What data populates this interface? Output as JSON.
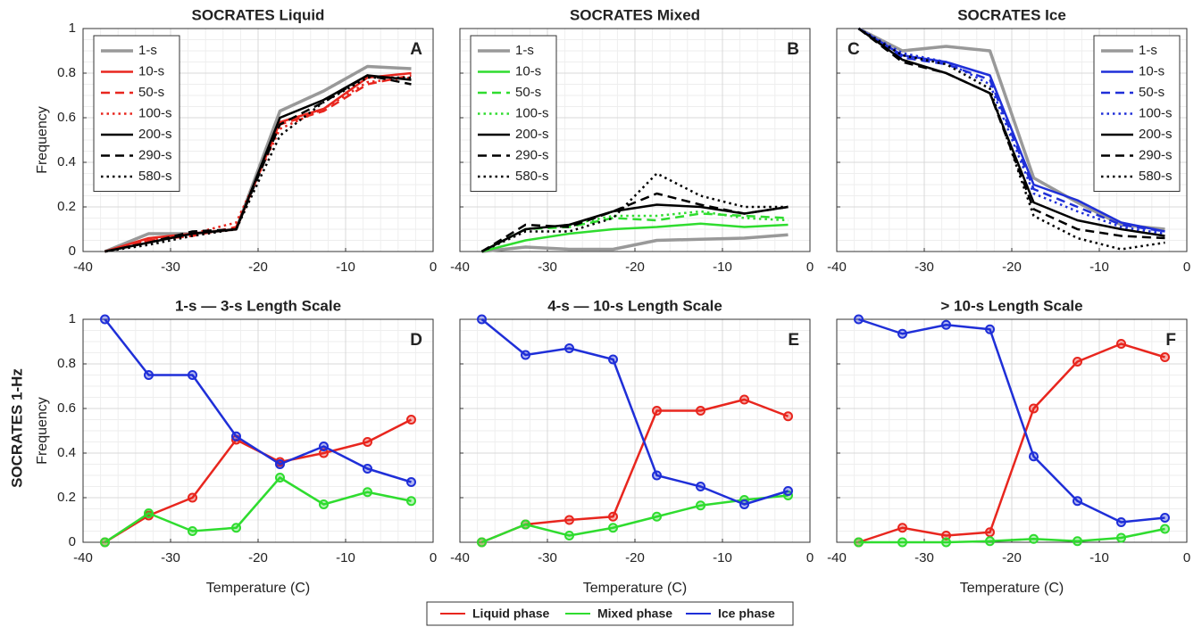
{
  "chart_data": [
    {
      "type": "line",
      "title": "SOCRATES Liquid",
      "panel_label": "A",
      "ylabel": "Frequency",
      "x": [
        -37.5,
        -32.5,
        -27.5,
        -22.5,
        -17.5,
        -12.5,
        -7.5,
        -2.5
      ],
      "xlim": [
        -40,
        0
      ],
      "xticks": [
        -40,
        -30,
        -20,
        -10,
        0
      ],
      "ylim": [
        0,
        1
      ],
      "yticks": [
        0,
        0.2,
        0.4,
        0.6,
        0.8,
        1
      ],
      "ytick_labels": true,
      "grid": true,
      "legend": "upper left",
      "markers": false,
      "series": [
        {
          "name": "1-s",
          "color": "#999999",
          "dash": "solid",
          "values": [
            0,
            0.08,
            0.08,
            0.1,
            0.63,
            0.72,
            0.83,
            0.82
          ]
        },
        {
          "name": "10-s",
          "color": "#e8261e",
          "dash": "solid",
          "values": [
            0,
            0.06,
            0.08,
            0.1,
            0.58,
            0.64,
            0.78,
            0.8
          ]
        },
        {
          "name": "50-s",
          "color": "#e8261e",
          "dash": "dashed",
          "values": [
            0,
            0.05,
            0.07,
            0.11,
            0.57,
            0.63,
            0.75,
            0.79
          ]
        },
        {
          "name": "100-s",
          "color": "#e8261e",
          "dash": "dotted",
          "values": [
            0,
            0.05,
            0.08,
            0.13,
            0.55,
            0.64,
            0.76,
            0.78
          ]
        },
        {
          "name": "200-s",
          "color": "#000000",
          "dash": "solid",
          "values": [
            0,
            0.04,
            0.08,
            0.1,
            0.6,
            0.68,
            0.79,
            0.77
          ]
        },
        {
          "name": "290-s",
          "color": "#000000",
          "dash": "dashed",
          "values": [
            0,
            0.04,
            0.09,
            0.1,
            0.57,
            0.67,
            0.79,
            0.75
          ]
        },
        {
          "name": "580-s",
          "color": "#000000",
          "dash": "dotted",
          "values": [
            0,
            0.03,
            0.07,
            0.1,
            0.52,
            0.67,
            0.78,
            0.78
          ]
        }
      ]
    },
    {
      "type": "line",
      "title": "SOCRATES Mixed",
      "panel_label": "B",
      "x": [
        -37.5,
        -32.5,
        -27.5,
        -22.5,
        -17.5,
        -12.5,
        -7.5,
        -2.5
      ],
      "xlim": [
        -40,
        0
      ],
      "xticks": [
        -40,
        -30,
        -20,
        -10,
        0
      ],
      "ylim": [
        0,
        1
      ],
      "yticks": [
        0,
        0.2,
        0.4,
        0.6,
        0.8,
        1
      ],
      "ytick_labels": false,
      "grid": true,
      "legend": "upper left",
      "markers": false,
      "series": [
        {
          "name": "1-s",
          "color": "#999999",
          "dash": "solid",
          "values": [
            0,
            0.02,
            0.01,
            0.01,
            0.05,
            0.055,
            0.06,
            0.075
          ]
        },
        {
          "name": "10-s",
          "color": "#2fdc2f",
          "dash": "solid",
          "values": [
            0,
            0.05,
            0.08,
            0.1,
            0.11,
            0.125,
            0.11,
            0.12
          ]
        },
        {
          "name": "50-s",
          "color": "#2fdc2f",
          "dash": "dashed",
          "values": [
            0,
            0.1,
            0.11,
            0.15,
            0.14,
            0.17,
            0.16,
            0.15
          ]
        },
        {
          "name": "100-s",
          "color": "#2fdc2f",
          "dash": "dotted",
          "values": [
            0,
            0.1,
            0.12,
            0.16,
            0.16,
            0.18,
            0.15,
            0.14
          ]
        },
        {
          "name": "200-s",
          "color": "#000000",
          "dash": "solid",
          "values": [
            0,
            0.1,
            0.12,
            0.18,
            0.21,
            0.2,
            0.17,
            0.2
          ]
        },
        {
          "name": "290-s",
          "color": "#000000",
          "dash": "dashed",
          "values": [
            0,
            0.12,
            0.11,
            0.18,
            0.26,
            0.21,
            0.17,
            0.2
          ]
        },
        {
          "name": "580-s",
          "color": "#000000",
          "dash": "dotted",
          "values": [
            0,
            0.09,
            0.09,
            0.15,
            0.35,
            0.25,
            0.2,
            0.2
          ]
        }
      ]
    },
    {
      "type": "line",
      "title": "SOCRATES Ice",
      "panel_label": "C",
      "x": [
        -37.5,
        -32.5,
        -27.5,
        -22.5,
        -17.5,
        -12.5,
        -7.5,
        -2.5
      ],
      "xlim": [
        -40,
        0
      ],
      "xticks": [
        -40,
        -30,
        -20,
        -10,
        0
      ],
      "ylim": [
        0,
        1
      ],
      "yticks": [
        0,
        0.2,
        0.4,
        0.6,
        0.8,
        1
      ],
      "ytick_labels": false,
      "grid": true,
      "legend": "upper right",
      "markers": false,
      "series": [
        {
          "name": "1-s",
          "color": "#999999",
          "dash": "solid",
          "values": [
            1,
            0.9,
            0.92,
            0.9,
            0.33,
            0.22,
            0.12,
            0.1
          ]
        },
        {
          "name": "10-s",
          "color": "#1f2fd8",
          "dash": "solid",
          "values": [
            1,
            0.88,
            0.85,
            0.79,
            0.3,
            0.23,
            0.13,
            0.09
          ]
        },
        {
          "name": "50-s",
          "color": "#1f2fd8",
          "dash": "dashed",
          "values": [
            1,
            0.87,
            0.84,
            0.77,
            0.28,
            0.2,
            0.12,
            0.09
          ]
        },
        {
          "name": "100-s",
          "color": "#1f2fd8",
          "dash": "dotted",
          "values": [
            1,
            0.89,
            0.85,
            0.75,
            0.26,
            0.18,
            0.11,
            0.08
          ]
        },
        {
          "name": "200-s",
          "color": "#000000",
          "dash": "solid",
          "values": [
            1,
            0.86,
            0.8,
            0.71,
            0.22,
            0.14,
            0.1,
            0.07
          ]
        },
        {
          "name": "290-s",
          "color": "#000000",
          "dash": "dashed",
          "values": [
            1,
            0.85,
            0.8,
            0.71,
            0.19,
            0.1,
            0.07,
            0.06
          ]
        },
        {
          "name": "580-s",
          "color": "#000000",
          "dash": "dotted",
          "values": [
            1,
            0.88,
            0.84,
            0.73,
            0.16,
            0.06,
            0.01,
            0.04
          ]
        }
      ]
    },
    {
      "type": "line",
      "title": "1-s — 3-s Length Scale",
      "panel_label": "D",
      "ylabel": "Frequency",
      "xlabel": "Temperature (C)",
      "x": [
        -37.5,
        -32.5,
        -27.5,
        -22.5,
        -17.5,
        -12.5,
        -7.5,
        -2.5
      ],
      "xlim": [
        -40,
        0
      ],
      "xticks": [
        -40,
        -30,
        -20,
        -10,
        0
      ],
      "ylim": [
        0,
        1
      ],
      "yticks": [
        0,
        0.2,
        0.4,
        0.6,
        0.8,
        1
      ],
      "ytick_labels": true,
      "grid": true,
      "markers": true,
      "series": [
        {
          "color": "#e8261e",
          "values": [
            0,
            0.12,
            0.2,
            0.46,
            0.36,
            0.4,
            0.45,
            0.55
          ]
        },
        {
          "color": "#2fdc2f",
          "values": [
            0,
            0.13,
            0.05,
            0.065,
            0.29,
            0.17,
            0.225,
            0.185
          ]
        },
        {
          "color": "#1f2fd8",
          "values": [
            1,
            0.75,
            0.75,
            0.475,
            0.35,
            0.43,
            0.33,
            0.27
          ]
        }
      ]
    },
    {
      "type": "line",
      "title": "4-s — 10-s Length Scale",
      "panel_label": "E",
      "xlabel": "Temperature (C)",
      "x": [
        -37.5,
        -32.5,
        -27.5,
        -22.5,
        -17.5,
        -12.5,
        -7.5,
        -2.5
      ],
      "xlim": [
        -40,
        0
      ],
      "xticks": [
        -40,
        -30,
        -20,
        -10,
        0
      ],
      "ylim": [
        0,
        1
      ],
      "yticks": [
        0,
        0.2,
        0.4,
        0.6,
        0.8,
        1
      ],
      "ytick_labels": false,
      "grid": true,
      "markers": true,
      "series": [
        {
          "color": "#e8261e",
          "values": [
            0,
            0.08,
            0.1,
            0.115,
            0.59,
            0.59,
            0.64,
            0.565
          ]
        },
        {
          "color": "#2fdc2f",
          "values": [
            0,
            0.08,
            0.03,
            0.065,
            0.115,
            0.165,
            0.19,
            0.21
          ]
        },
        {
          "color": "#1f2fd8",
          "values": [
            1,
            0.84,
            0.87,
            0.82,
            0.3,
            0.25,
            0.17,
            0.23
          ]
        }
      ]
    },
    {
      "type": "line",
      "title": "> 10-s Length Scale",
      "panel_label": "F",
      "xlabel": "Temperature (C)",
      "x": [
        -37.5,
        -32.5,
        -27.5,
        -22.5,
        -17.5,
        -12.5,
        -7.5,
        -2.5
      ],
      "xlim": [
        -40,
        0
      ],
      "xticks": [
        -40,
        -30,
        -20,
        -10,
        0
      ],
      "ylim": [
        0,
        1
      ],
      "yticks": [
        0,
        0.2,
        0.4,
        0.6,
        0.8,
        1
      ],
      "ytick_labels": false,
      "grid": true,
      "markers": true,
      "series": [
        {
          "color": "#e8261e",
          "values": [
            0,
            0.065,
            0.03,
            0.045,
            0.6,
            0.81,
            0.89,
            0.83
          ]
        },
        {
          "color": "#2fdc2f",
          "values": [
            0,
            0,
            0,
            0.005,
            0.015,
            0.005,
            0.02,
            0.06
          ]
        },
        {
          "color": "#1f2fd8",
          "values": [
            1,
            0.935,
            0.975,
            0.955,
            0.385,
            0.185,
            0.09,
            0.11
          ]
        }
      ]
    }
  ],
  "row_label": "SOCRATES 1-Hz",
  "figure_legend": [
    {
      "name": "Liquid phase",
      "color": "#e8261e"
    },
    {
      "name": "Mixed phase",
      "color": "#2fdc2f"
    },
    {
      "name": "Ice phase",
      "color": "#1f2fd8"
    }
  ]
}
